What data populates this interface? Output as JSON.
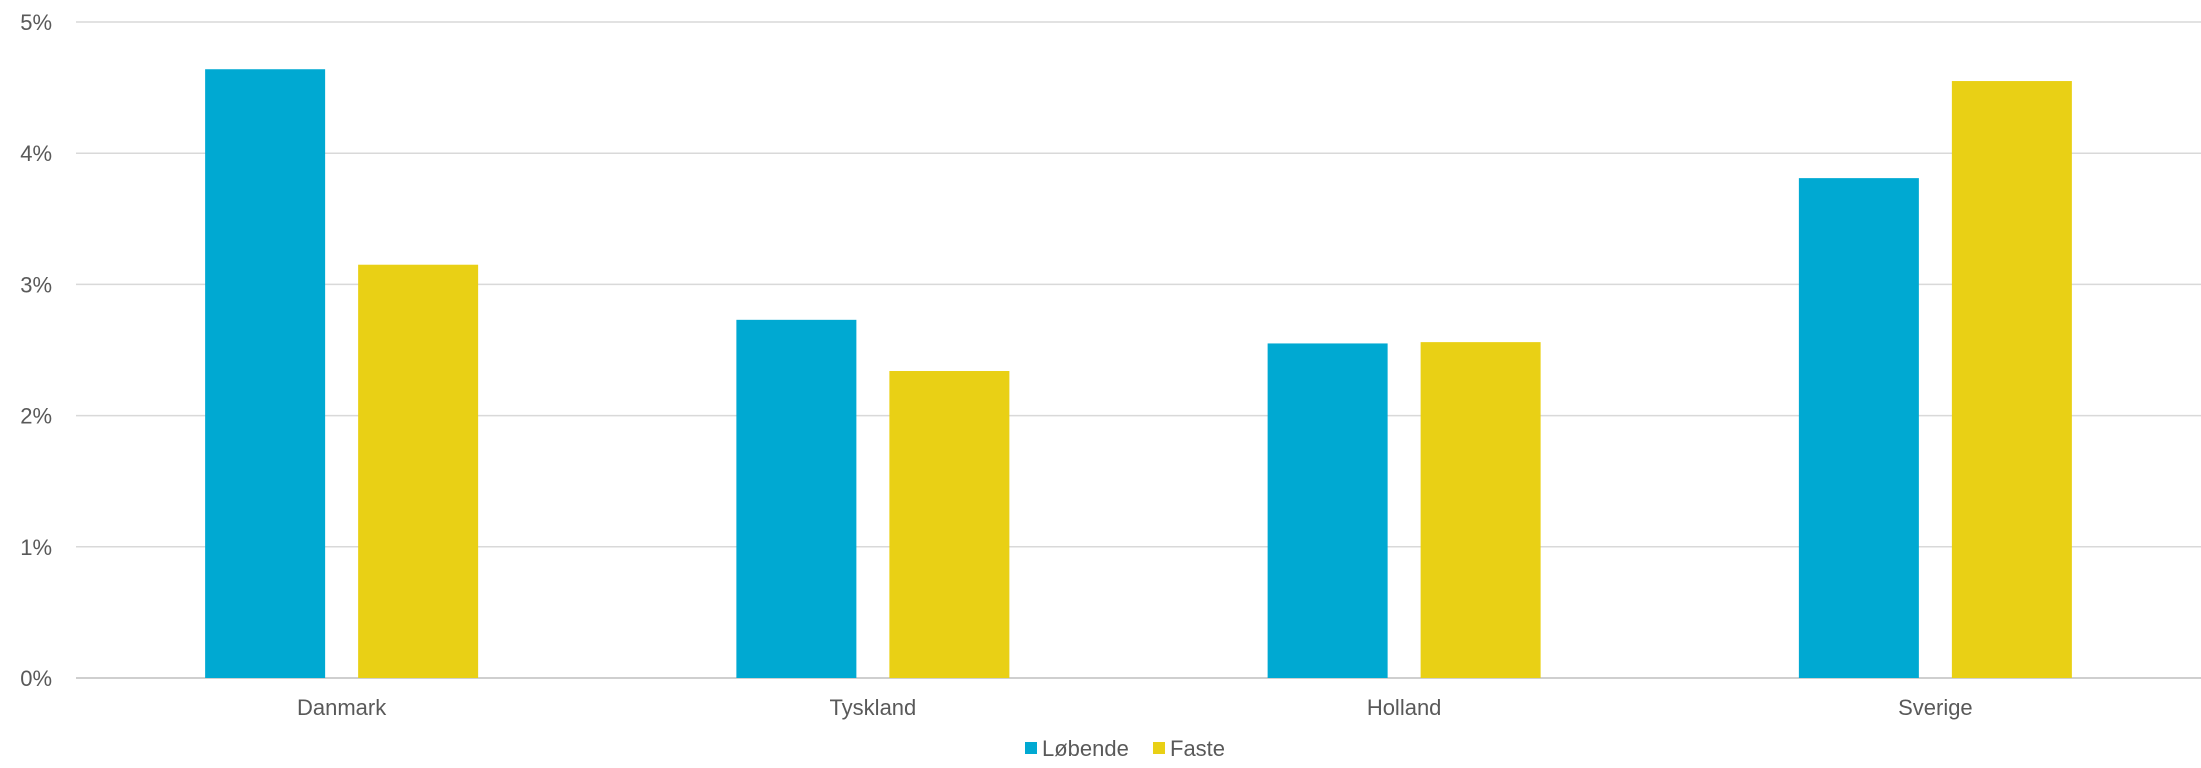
{
  "chart_data": {
    "type": "bar",
    "categories": [
      "Danmark",
      "Tyskland",
      "Holland",
      "Sverige"
    ],
    "series": [
      {
        "name": "Løbende",
        "color": "#00a9d2",
        "values": [
          4.64,
          2.73,
          2.55,
          3.81
        ]
      },
      {
        "name": "Faste",
        "color": "#e9d015",
        "values": [
          3.15,
          2.34,
          2.56,
          4.55
        ]
      }
    ],
    "ylim": [
      0,
      5
    ],
    "yticks": [
      0,
      1,
      2,
      3,
      4,
      5
    ],
    "ytick_labels": [
      "0%",
      "1%",
      "2%",
      "3%",
      "4%",
      "5%"
    ],
    "grid": true,
    "legend_position": "bottom",
    "title": "",
    "xlabel": "",
    "ylabel": ""
  }
}
